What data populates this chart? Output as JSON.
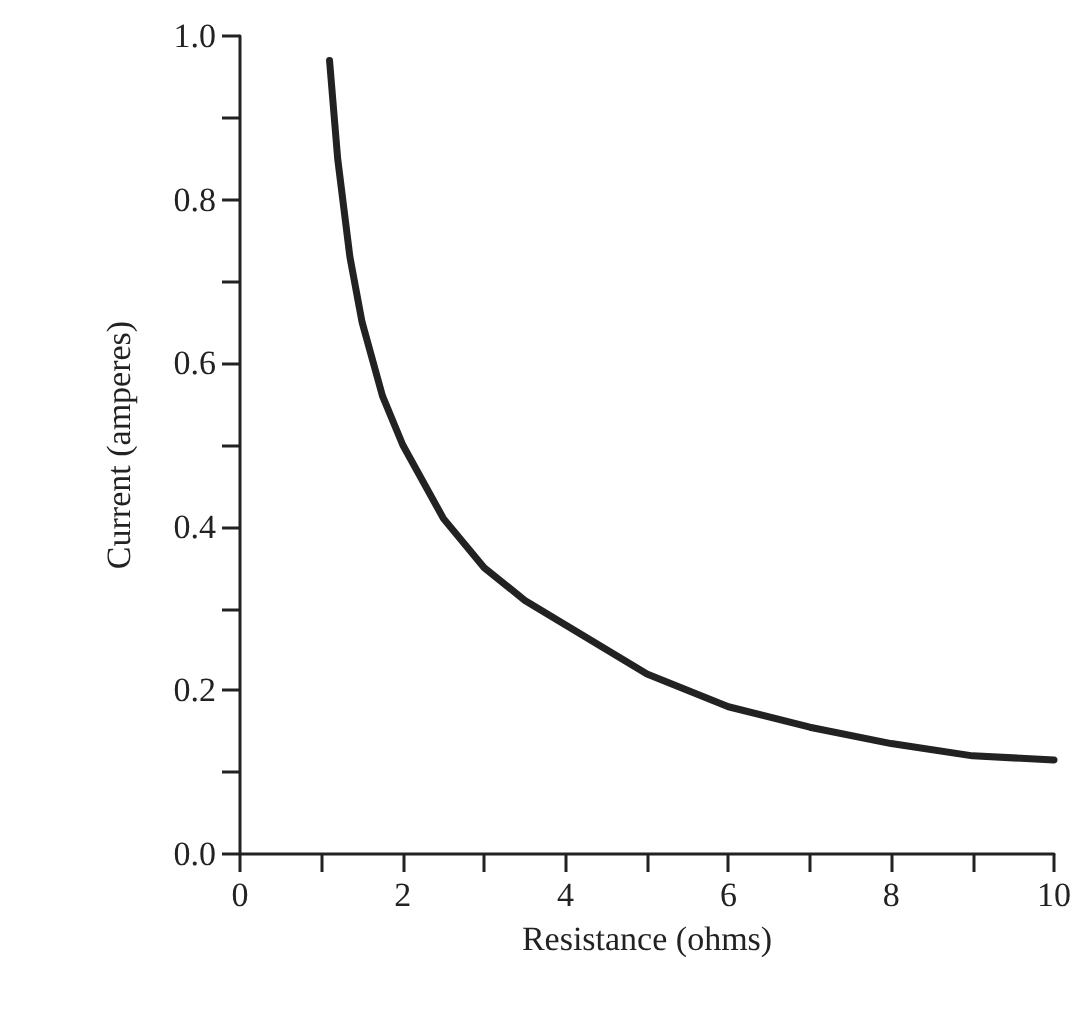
{
  "chart_data": {
    "type": "line",
    "xlabel": "Resistance (ohms)",
    "ylabel": "Current (amperes)",
    "x": [
      1.1,
      1.2,
      1.35,
      1.5,
      1.75,
      2,
      2.5,
      3,
      3.5,
      4,
      5,
      6,
      7,
      8,
      9,
      10
    ],
    "series": [
      {
        "color": "#222222",
        "values": [
          0.97,
          0.85,
          0.73,
          0.65,
          0.56,
          0.5,
          0.41,
          0.35,
          0.31,
          0.28,
          0.22,
          0.18,
          0.155,
          0.135,
          0.12,
          0.115
        ]
      }
    ],
    "xlim": [
      0,
      10
    ],
    "ylim": [
      0,
      1
    ],
    "xticks": [
      0,
      {
        "value": 1,
        "label": null
      },
      2,
      {
        "value": 3,
        "label": null
      },
      4,
      {
        "value": 5,
        "label": null
      },
      6,
      {
        "value": 7,
        "label": null
      },
      8,
      {
        "value": 9,
        "label": null
      },
      10
    ],
    "yticks": [
      {
        "value": 0,
        "label": "0.0"
      },
      {
        "value": 0.1,
        "label": null
      },
      0.2,
      {
        "value": 0.3,
        "label": null
      },
      0.4,
      {
        "value": 0.5,
        "label": null
      },
      0.6,
      {
        "value": 0.7,
        "label": null
      },
      0.8,
      {
        "value": 0.9,
        "label": null
      },
      {
        "value": 1,
        "label": "1.0"
      }
    ],
    "grid": false,
    "marker": "none",
    "line_style": "solid"
  }
}
